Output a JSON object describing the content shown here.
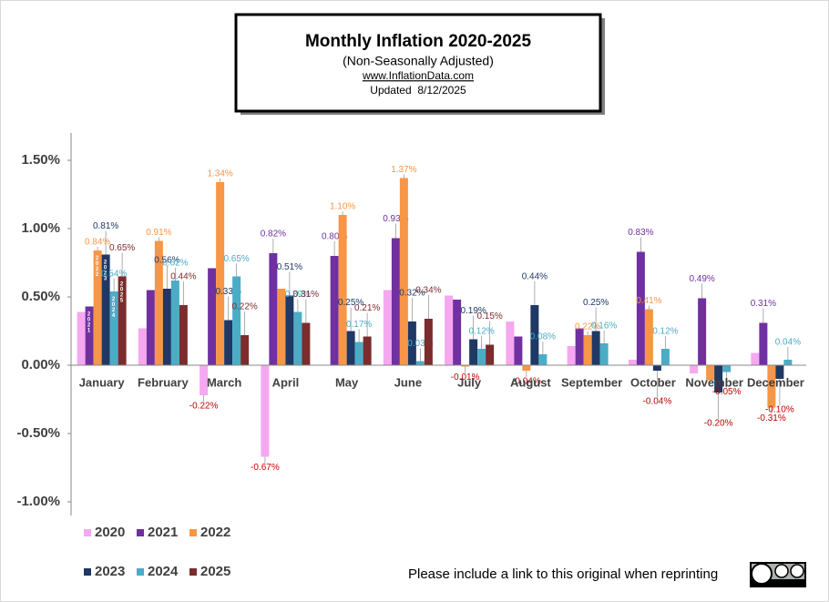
{
  "chart_data": {
    "type": "bar",
    "title": "Monthly Inflation 2020-2025",
    "subtitle": "(Non-Seasonally Adjusted)",
    "source": "www.InflationData.com",
    "updated": "Updated  8/12/2025",
    "note": "Please include a link to this original when reprinting",
    "categories": [
      "January",
      "February",
      "March",
      "April",
      "May",
      "June",
      "July",
      "August",
      "September",
      "October",
      "November",
      "December"
    ],
    "ylim": [
      -1.1,
      1.7
    ],
    "yticks": [
      {
        "value": -1.0,
        "label": "-1.00%"
      },
      {
        "value": -0.5,
        "label": "-0.50%"
      },
      {
        "value": 0,
        "label": "0.00%"
      },
      {
        "value": 0.5,
        "label": "0.50%"
      },
      {
        "value": 1.0,
        "label": "1.00%"
      },
      {
        "value": 1.5,
        "label": "1.50%"
      }
    ],
    "negative_label_color": "#c00000",
    "series": [
      {
        "name": "2020",
        "color": "#f5a8f0",
        "values": [
          0.39,
          0.27,
          -0.22,
          -0.67,
          0.002,
          0.55,
          0.51,
          0.32,
          0.14,
          0.04,
          -0.06,
          0.09
        ],
        "value_labels": [
          null,
          null,
          "-0.22%",
          "-0.67%",
          null,
          null,
          null,
          null,
          null,
          null,
          null,
          null
        ]
      },
      {
        "name": "2021",
        "color": "#7030a0",
        "values": [
          0.43,
          0.55,
          0.71,
          0.82,
          0.8,
          0.93,
          0.48,
          0.21,
          0.27,
          0.83,
          0.49,
          0.31
        ],
        "value_labels": [
          null,
          null,
          null,
          "0.82%",
          "0.80%",
          "0.93%",
          null,
          null,
          null,
          "0.83%",
          "0.49%",
          "0.31%"
        ]
      },
      {
        "name": "2022",
        "color": "#f79646",
        "values": [
          0.84,
          0.91,
          1.34,
          0.56,
          1.1,
          1.37,
          -0.01,
          -0.04,
          0.22,
          0.41,
          -0.11,
          -0.31
        ],
        "value_labels": [
          "0.84%",
          "0.91%",
          "1.34%",
          null,
          "1.10%",
          "1.37%",
          "-0.01%",
          "-0.04%",
          "0.22%",
          "0.41%",
          null,
          "-0.31%"
        ]
      },
      {
        "name": "2023",
        "color": "#1f3864",
        "values": [
          0.81,
          0.56,
          0.33,
          0.51,
          0.25,
          0.32,
          0.19,
          0.44,
          0.25,
          -0.04,
          -0.2,
          -0.1
        ],
        "value_labels": [
          "0.81%",
          "0.56%",
          "0.33%",
          "0.51%",
          "0.25%",
          "0.32%",
          "0.19%",
          "0.44%",
          "0.25%",
          "-0.04%",
          "-0.20%",
          "-0.10%"
        ]
      },
      {
        "name": "2024",
        "color": "#4bacc6",
        "values": [
          0.54,
          0.62,
          0.65,
          0.39,
          0.17,
          0.03,
          0.12,
          0.08,
          0.16,
          0.12,
          -0.05,
          0.04
        ],
        "value_labels": [
          "0.54%",
          "0.62%",
          "0.65%",
          "0.39%",
          "0.17%",
          "0.03%",
          "0.12%",
          "0.08%",
          "0.16%",
          "0.12%",
          "-0.05%",
          "0.04%"
        ]
      },
      {
        "name": "2025",
        "color": "#7b2c2c",
        "values": [
          0.65,
          0.44,
          0.22,
          0.31,
          0.21,
          0.34,
          0.15,
          null,
          null,
          null,
          null,
          null
        ],
        "value_labels": [
          "0.65%",
          "0.44%",
          "0.22%",
          "0.31%",
          "0.21%",
          "0.34%",
          "0.15%",
          null,
          null,
          null,
          null,
          null
        ]
      }
    ]
  }
}
